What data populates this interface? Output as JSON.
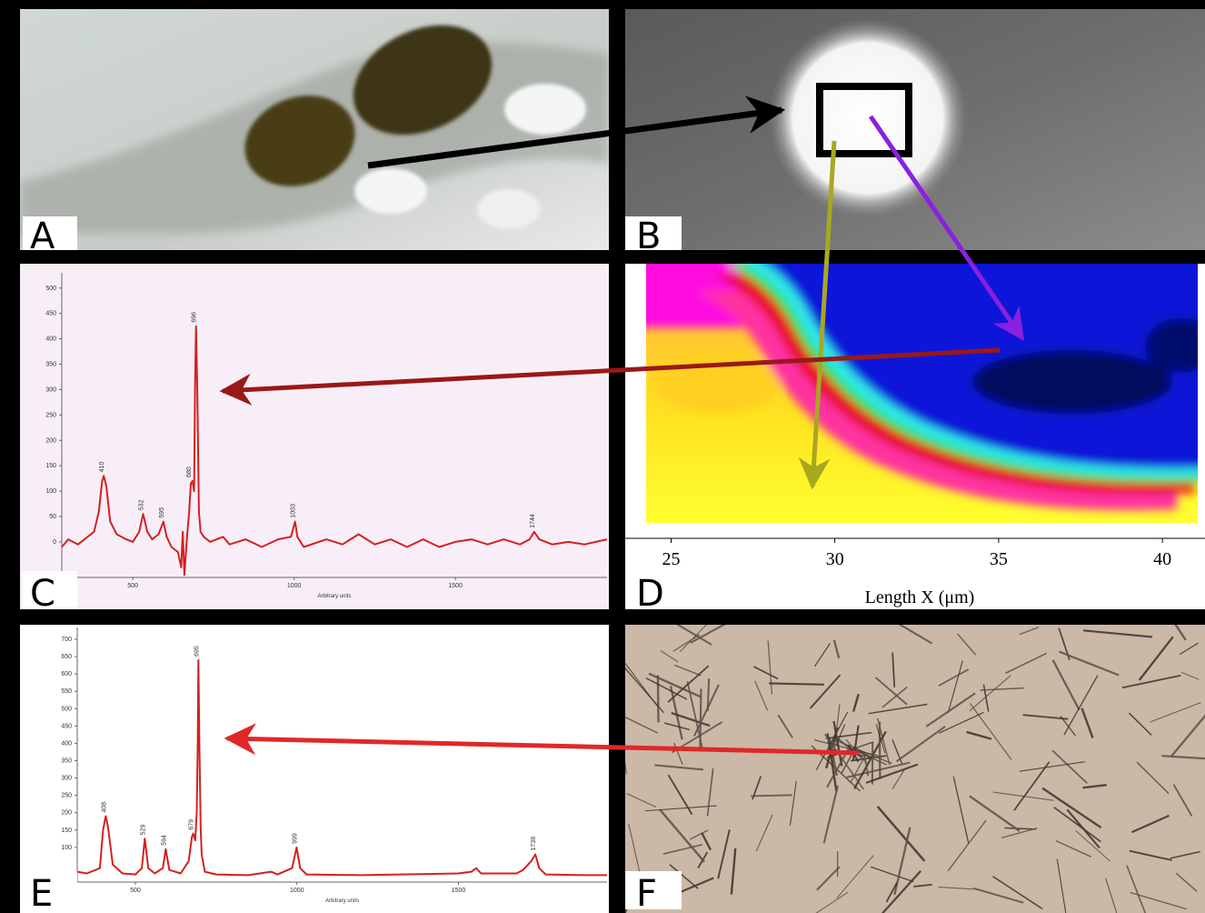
{
  "panel_labels": [
    "A",
    "B",
    "C",
    "D",
    "E",
    "F"
  ],
  "chart_data": [
    {
      "type": "line",
      "x": [
        280,
        300,
        330,
        360,
        380,
        395,
        405,
        410,
        418,
        430,
        450,
        480,
        500,
        520,
        532,
        545,
        560,
        580,
        595,
        605,
        620,
        640,
        650,
        655,
        660,
        668,
        675,
        680,
        685,
        690,
        693,
        696,
        700,
        705,
        710,
        720,
        740,
        780,
        800,
        850,
        900,
        950,
        990,
        1003,
        1010,
        1030,
        1100,
        1150,
        1200,
        1250,
        1300,
        1350,
        1400,
        1450,
        1500,
        1550,
        1600,
        1650,
        1700,
        1730,
        1744,
        1760,
        1800,
        1850,
        1900,
        1970
      ],
      "values": [
        -10,
        5,
        -5,
        10,
        20,
        60,
        120,
        130,
        110,
        40,
        15,
        5,
        0,
        20,
        55,
        20,
        5,
        15,
        40,
        10,
        -10,
        -20,
        -50,
        20,
        -65,
        10,
        60,
        115,
        120,
        100,
        300,
        425,
        300,
        60,
        20,
        10,
        0,
        10,
        -5,
        5,
        -10,
        5,
        10,
        40,
        10,
        -10,
        5,
        -5,
        15,
        -5,
        5,
        -10,
        5,
        -10,
        0,
        5,
        -5,
        5,
        -5,
        5,
        20,
        5,
        -5,
        0,
        -5,
        5
      ],
      "color": "#d42020",
      "xlim": [
        280,
        1970
      ],
      "ylim": [
        -70,
        530
      ],
      "xticks": [
        500,
        1000,
        1500
      ],
      "yticks": [
        0,
        50,
        100,
        150,
        200,
        250,
        300,
        350,
        400,
        450,
        500
      ],
      "xlabel": "Arbitrary units",
      "peak_labels": [
        410,
        532,
        595,
        680,
        696,
        1003,
        1744
      ]
    },
    {
      "type": "heatmap",
      "xlim": [
        23.6,
        41.3
      ],
      "xticks": [
        25,
        30,
        35,
        40
      ],
      "xlabel": "Length X (μm)"
    },
    {
      "type": "line",
      "x": [
        320,
        350,
        390,
        400,
        408,
        415,
        430,
        460,
        500,
        520,
        529,
        540,
        560,
        585,
        594,
        605,
        640,
        665,
        675,
        679,
        685,
        690,
        693,
        695,
        698,
        702,
        705,
        715,
        750,
        850,
        920,
        940,
        985,
        999,
        1010,
        1030,
        1200,
        1500,
        1540,
        1555,
        1570,
        1680,
        1700,
        1725,
        1738,
        1750,
        1770,
        1900,
        1960
      ],
      "values": [
        30,
        25,
        40,
        150,
        190,
        160,
        50,
        25,
        22,
        40,
        125,
        40,
        25,
        40,
        95,
        35,
        25,
        60,
        130,
        140,
        120,
        200,
        400,
        640,
        400,
        160,
        80,
        30,
        22,
        20,
        30,
        22,
        40,
        100,
        40,
        22,
        20,
        25,
        30,
        40,
        25,
        25,
        35,
        60,
        80,
        40,
        22,
        20,
        20
      ],
      "color": "#d42020",
      "xlim": [
        320,
        1960
      ],
      "ylim": [
        0,
        734
      ],
      "xticks": [
        500,
        1000,
        1500
      ],
      "yticks": [
        100,
        150,
        200,
        250,
        300,
        350,
        400,
        450,
        500,
        550,
        600,
        650,
        700
      ],
      "xlabel": "Arbitrary units",
      "peak_labels": [
        408,
        529,
        594,
        679,
        695,
        999,
        1738
      ]
    }
  ]
}
